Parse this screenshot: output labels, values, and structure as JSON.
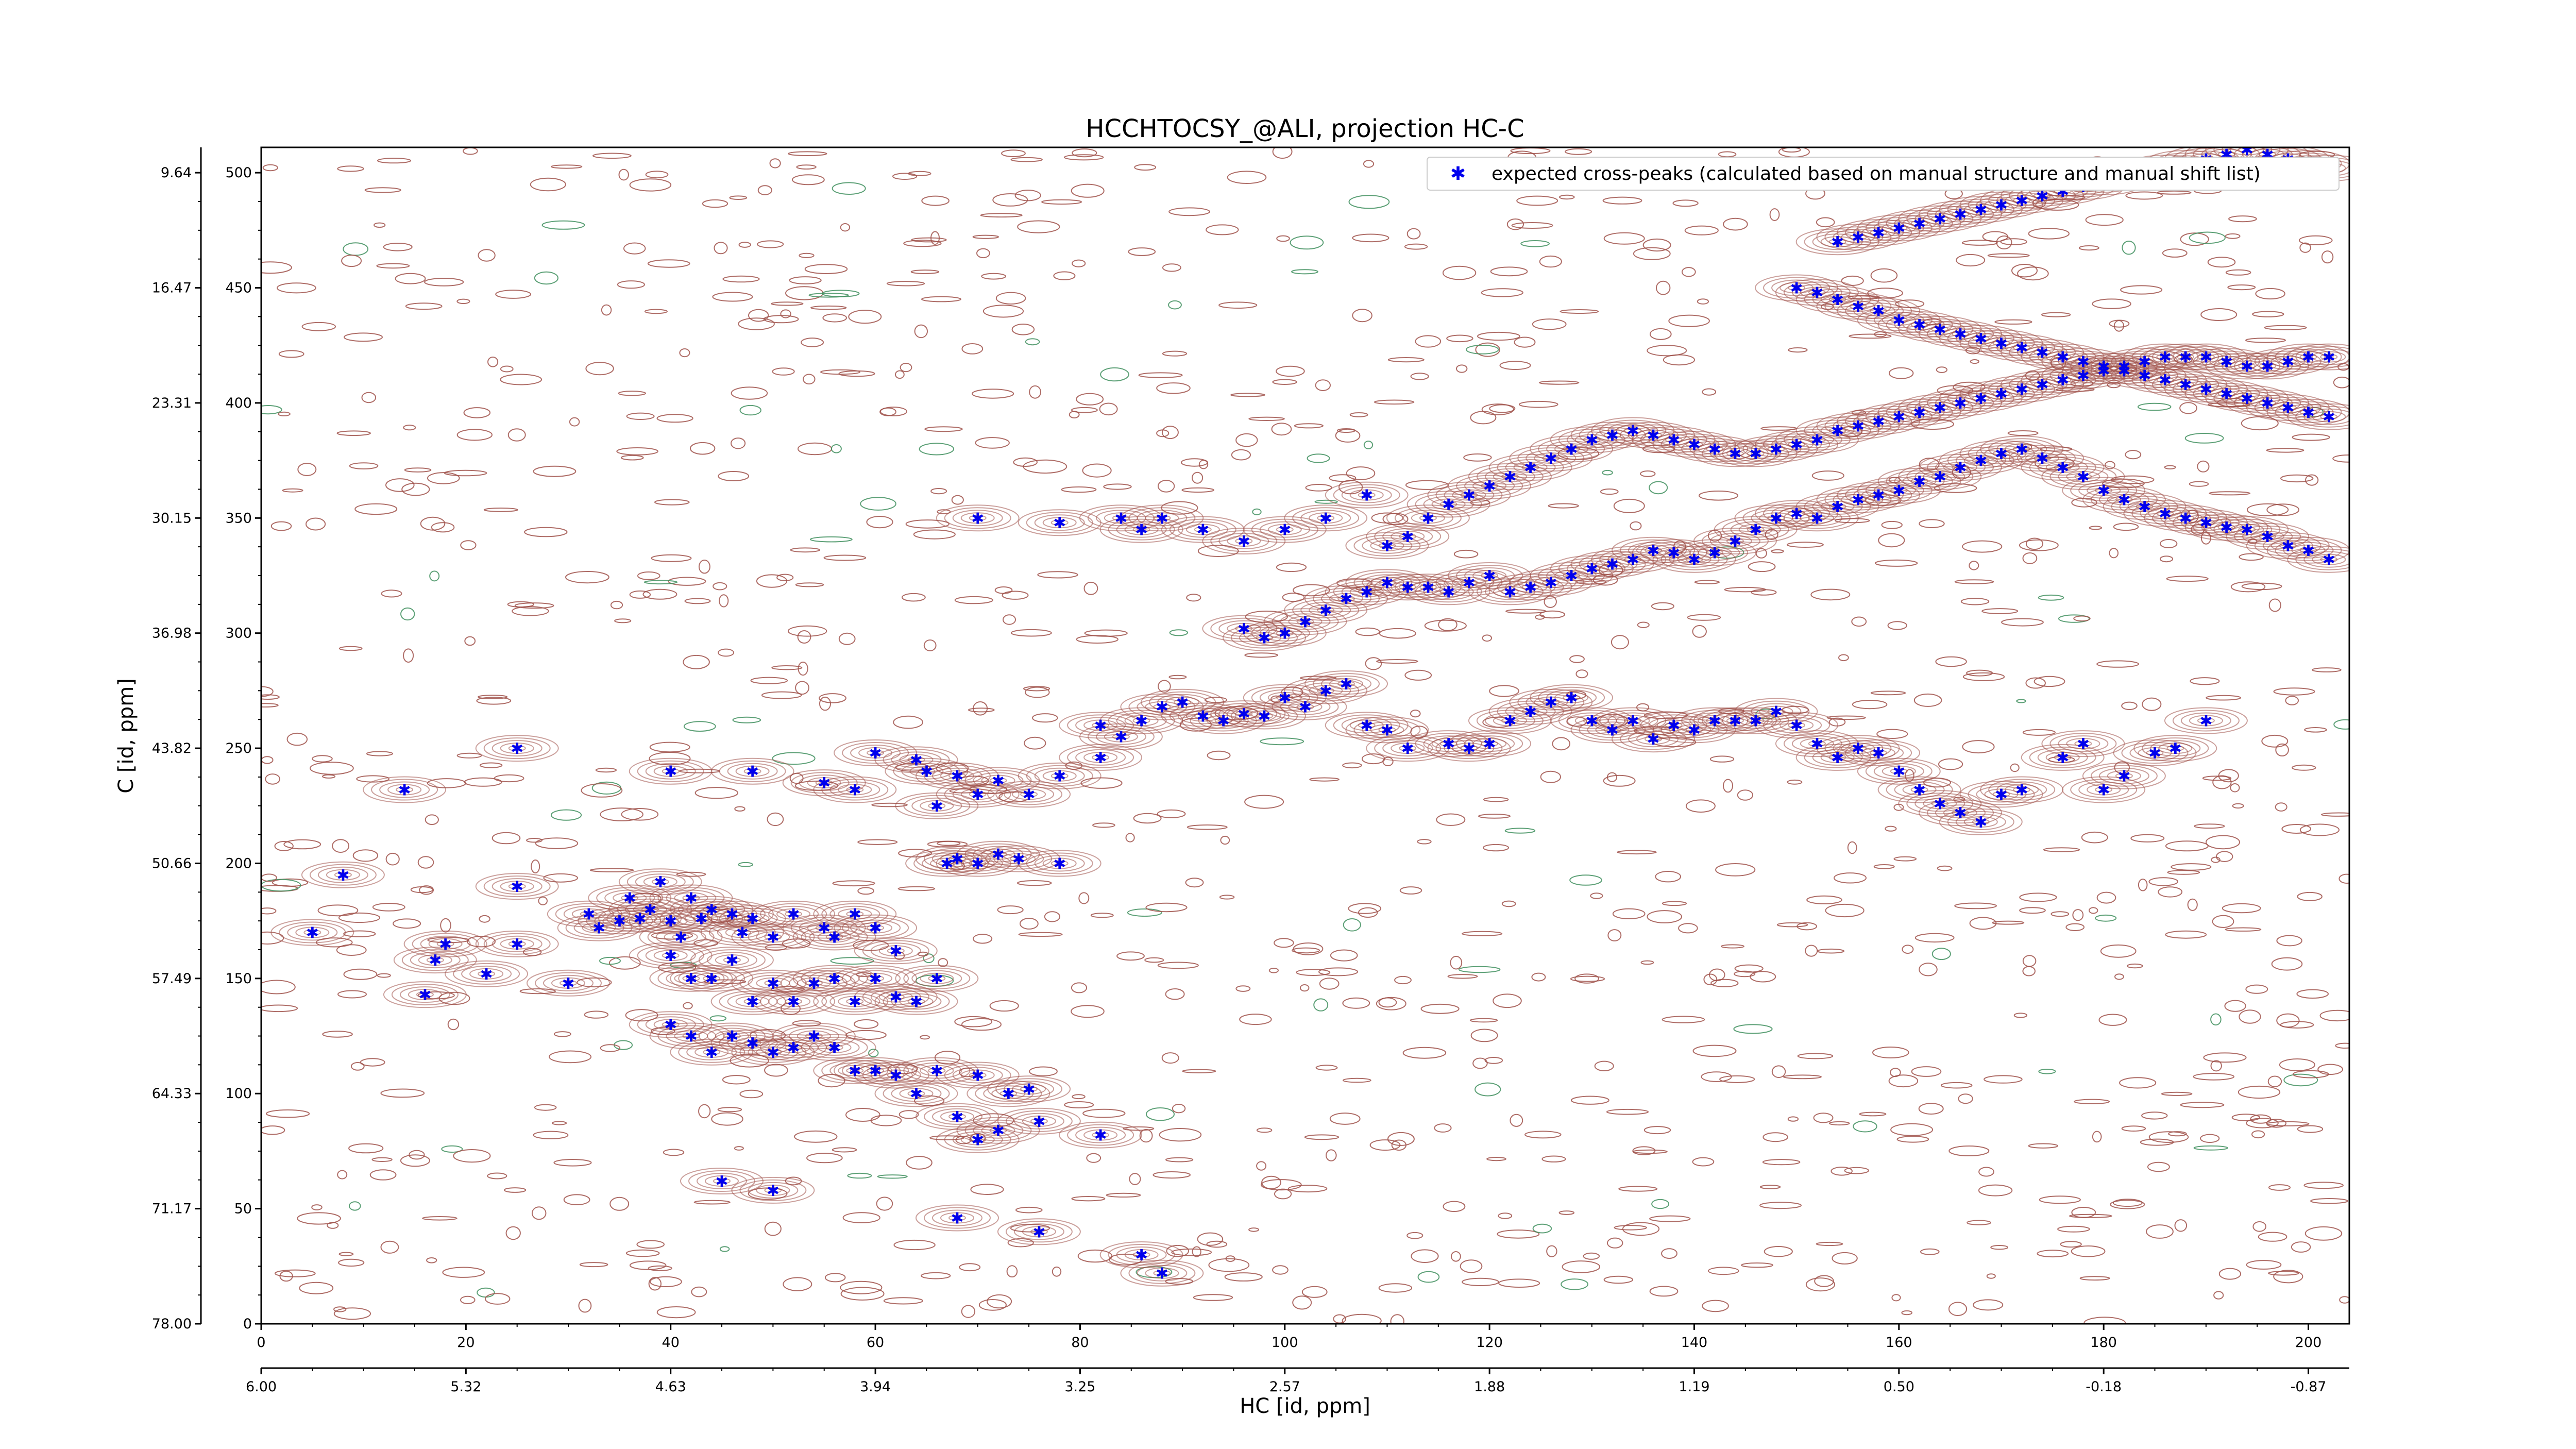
{
  "chart_data": {
    "type": "scatter",
    "title": "HCCHTOCSY_@ALI, projection HC-C",
    "xlabel": "HC [id, ppm]",
    "ylabel": "C [id, ppm]",
    "xlim": [
      0,
      204
    ],
    "ylim": [
      0,
      511
    ],
    "x_ticks": [
      0,
      20,
      40,
      60,
      80,
      100,
      120,
      140,
      160,
      180,
      200
    ],
    "y_ticks": [
      0,
      50,
      100,
      150,
      200,
      250,
      300,
      350,
      400,
      450,
      500
    ],
    "x_ppm_ticks": [
      "6.00",
      "5.32",
      "4.63",
      "3.94",
      "3.25",
      "2.57",
      "1.88",
      "1.19",
      "0.50",
      "-0.18",
      "-0.87"
    ],
    "y_ppm_ticks": [
      "78.00",
      "71.17",
      "64.33",
      "57.49",
      "50.66",
      "43.82",
      "36.98",
      "30.15",
      "23.31",
      "16.47",
      "9.64"
    ],
    "legend_position": "top-right",
    "series": [
      {
        "name": "expected cross-peaks (calculated based on manual structure and manual shift list)",
        "marker": "star",
        "color": "#0000ee",
        "points": [
          [
            5,
            170
          ],
          [
            8,
            195
          ],
          [
            16,
            143
          ],
          [
            17,
            158
          ],
          [
            18,
            165
          ],
          [
            22,
            152
          ],
          [
            25,
            190
          ],
          [
            25,
            165
          ],
          [
            30,
            148
          ],
          [
            32,
            178
          ],
          [
            33,
            172
          ],
          [
            35,
            175
          ],
          [
            36,
            185
          ],
          [
            37,
            176
          ],
          [
            38,
            180
          ],
          [
            39,
            192
          ],
          [
            40,
            175
          ],
          [
            41,
            168
          ],
          [
            42,
            185
          ],
          [
            43,
            176
          ],
          [
            44,
            180
          ],
          [
            46,
            178
          ],
          [
            47,
            170
          ],
          [
            48,
            176
          ],
          [
            50,
            168
          ],
          [
            52,
            178
          ],
          [
            55,
            172
          ],
          [
            56,
            168
          ],
          [
            58,
            178
          ],
          [
            60,
            172
          ],
          [
            62,
            162
          ],
          [
            40,
            160
          ],
          [
            42,
            150
          ],
          [
            44,
            150
          ],
          [
            46,
            158
          ],
          [
            48,
            140
          ],
          [
            50,
            148
          ],
          [
            52,
            140
          ],
          [
            54,
            148
          ],
          [
            56,
            150
          ],
          [
            58,
            140
          ],
          [
            60,
            150
          ],
          [
            62,
            142
          ],
          [
            64,
            140
          ],
          [
            66,
            150
          ],
          [
            40,
            130
          ],
          [
            42,
            125
          ],
          [
            44,
            118
          ],
          [
            46,
            125
          ],
          [
            48,
            122
          ],
          [
            50,
            118
          ],
          [
            52,
            120
          ],
          [
            54,
            125
          ],
          [
            56,
            120
          ],
          [
            58,
            110
          ],
          [
            60,
            110
          ],
          [
            62,
            108
          ],
          [
            64,
            100
          ],
          [
            66,
            110
          ],
          [
            70,
            108
          ],
          [
            73,
            100
          ],
          [
            75,
            102
          ],
          [
            76,
            88
          ],
          [
            68,
            90
          ],
          [
            70,
            80
          ],
          [
            72,
            84
          ],
          [
            82,
            82
          ],
          [
            45,
            62
          ],
          [
            50,
            58
          ],
          [
            68,
            46
          ],
          [
            76,
            40
          ],
          [
            86,
            30
          ],
          [
            88,
            22
          ],
          [
            14,
            232
          ],
          [
            25,
            250
          ],
          [
            40,
            240
          ],
          [
            48,
            240
          ],
          [
            55,
            235
          ],
          [
            58,
            232
          ],
          [
            65,
            240
          ],
          [
            68,
            238
          ],
          [
            70,
            230
          ],
          [
            72,
            236
          ],
          [
            75,
            230
          ],
          [
            78,
            238
          ],
          [
            82,
            246
          ],
          [
            60,
            248
          ],
          [
            64,
            245
          ],
          [
            66,
            225
          ],
          [
            67,
            200
          ],
          [
            68,
            202
          ],
          [
            70,
            200
          ],
          [
            72,
            204
          ],
          [
            74,
            202
          ],
          [
            78,
            200
          ],
          [
            82,
            260
          ],
          [
            84,
            255
          ],
          [
            86,
            262
          ],
          [
            88,
            268
          ],
          [
            90,
            270
          ],
          [
            92,
            264
          ],
          [
            94,
            262
          ],
          [
            96,
            265
          ],
          [
            98,
            264
          ],
          [
            100,
            272
          ],
          [
            102,
            268
          ],
          [
            104,
            275
          ],
          [
            106,
            278
          ],
          [
            108,
            260
          ],
          [
            110,
            258
          ],
          [
            112,
            250
          ],
          [
            116,
            252
          ],
          [
            118,
            250
          ],
          [
            120,
            252
          ],
          [
            122,
            262
          ],
          [
            124,
            266
          ],
          [
            126,
            270
          ],
          [
            128,
            272
          ],
          [
            130,
            262
          ],
          [
            132,
            258
          ],
          [
            134,
            262
          ],
          [
            136,
            254
          ],
          [
            138,
            260
          ],
          [
            140,
            258
          ],
          [
            142,
            262
          ],
          [
            144,
            262
          ],
          [
            146,
            262
          ],
          [
            148,
            266
          ],
          [
            150,
            260
          ],
          [
            152,
            252
          ],
          [
            154,
            246
          ],
          [
            156,
            250
          ],
          [
            158,
            248
          ],
          [
            160,
            240
          ],
          [
            162,
            232
          ],
          [
            164,
            226
          ],
          [
            166,
            222
          ],
          [
            168,
            218
          ],
          [
            170,
            230
          ],
          [
            172,
            232
          ],
          [
            176,
            246
          ],
          [
            178,
            252
          ],
          [
            180,
            232
          ],
          [
            182,
            238
          ],
          [
            185,
            248
          ],
          [
            187,
            250
          ],
          [
            190,
            262
          ],
          [
            96,
            302
          ],
          [
            98,
            298
          ],
          [
            100,
            300
          ],
          [
            102,
            305
          ],
          [
            104,
            310
          ],
          [
            106,
            315
          ],
          [
            108,
            318
          ],
          [
            110,
            322
          ],
          [
            112,
            320
          ],
          [
            114,
            320
          ],
          [
            116,
            318
          ],
          [
            118,
            322
          ],
          [
            120,
            325
          ],
          [
            122,
            318
          ],
          [
            124,
            320
          ],
          [
            126,
            322
          ],
          [
            128,
            325
          ],
          [
            130,
            328
          ],
          [
            132,
            330
          ],
          [
            134,
            332
          ],
          [
            136,
            336
          ],
          [
            138,
            335
          ],
          [
            140,
            332
          ],
          [
            142,
            335
          ],
          [
            144,
            340
          ],
          [
            146,
            345
          ],
          [
            148,
            350
          ],
          [
            150,
            352
          ],
          [
            152,
            350
          ],
          [
            154,
            355
          ],
          [
            156,
            358
          ],
          [
            158,
            360
          ],
          [
            160,
            362
          ],
          [
            162,
            366
          ],
          [
            164,
            368
          ],
          [
            166,
            372
          ],
          [
            168,
            375
          ],
          [
            170,
            378
          ],
          [
            172,
            380
          ],
          [
            174,
            376
          ],
          [
            176,
            372
          ],
          [
            178,
            368
          ],
          [
            180,
            362
          ],
          [
            182,
            358
          ],
          [
            184,
            355
          ],
          [
            186,
            352
          ],
          [
            188,
            350
          ],
          [
            190,
            348
          ],
          [
            192,
            346
          ],
          [
            194,
            345
          ],
          [
            196,
            342
          ],
          [
            198,
            338
          ],
          [
            200,
            336
          ],
          [
            202,
            332
          ],
          [
            110,
            338
          ],
          [
            112,
            342
          ],
          [
            114,
            350
          ],
          [
            116,
            356
          ],
          [
            118,
            360
          ],
          [
            120,
            364
          ],
          [
            122,
            368
          ],
          [
            124,
            372
          ],
          [
            126,
            376
          ],
          [
            128,
            380
          ],
          [
            130,
            384
          ],
          [
            132,
            386
          ],
          [
            134,
            388
          ],
          [
            136,
            386
          ],
          [
            138,
            384
          ],
          [
            140,
            382
          ],
          [
            142,
            380
          ],
          [
            144,
            378
          ],
          [
            146,
            378
          ],
          [
            148,
            380
          ],
          [
            150,
            382
          ],
          [
            152,
            384
          ],
          [
            154,
            388
          ],
          [
            156,
            390
          ],
          [
            158,
            392
          ],
          [
            160,
            394
          ],
          [
            162,
            396
          ],
          [
            164,
            398
          ],
          [
            166,
            400
          ],
          [
            168,
            402
          ],
          [
            170,
            404
          ],
          [
            172,
            406
          ],
          [
            174,
            408
          ],
          [
            176,
            410
          ],
          [
            178,
            412
          ],
          [
            180,
            414
          ],
          [
            182,
            416
          ],
          [
            184,
            418
          ],
          [
            186,
            420
          ],
          [
            188,
            420
          ],
          [
            190,
            420
          ],
          [
            192,
            418
          ],
          [
            194,
            416
          ],
          [
            196,
            416
          ],
          [
            198,
            418
          ],
          [
            200,
            420
          ],
          [
            202,
            420
          ],
          [
            150,
            450
          ],
          [
            152,
            448
          ],
          [
            154,
            445
          ],
          [
            156,
            442
          ],
          [
            158,
            440
          ],
          [
            160,
            436
          ],
          [
            162,
            434
          ],
          [
            164,
            432
          ],
          [
            166,
            430
          ],
          [
            168,
            428
          ],
          [
            170,
            426
          ],
          [
            172,
            424
          ],
          [
            174,
            422
          ],
          [
            176,
            420
          ],
          [
            178,
            418
          ],
          [
            180,
            416
          ],
          [
            182,
            414
          ],
          [
            184,
            412
          ],
          [
            186,
            410
          ],
          [
            188,
            408
          ],
          [
            190,
            406
          ],
          [
            192,
            404
          ],
          [
            194,
            402
          ],
          [
            196,
            400
          ],
          [
            198,
            398
          ],
          [
            200,
            396
          ],
          [
            202,
            394
          ],
          [
            154,
            470
          ],
          [
            156,
            472
          ],
          [
            158,
            474
          ],
          [
            160,
            476
          ],
          [
            162,
            478
          ],
          [
            164,
            480
          ],
          [
            166,
            482
          ],
          [
            168,
            484
          ],
          [
            170,
            486
          ],
          [
            172,
            488
          ],
          [
            174,
            490
          ],
          [
            176,
            492
          ],
          [
            178,
            494
          ],
          [
            180,
            496
          ],
          [
            182,
            498
          ],
          [
            184,
            500
          ],
          [
            186,
            502
          ],
          [
            188,
            504
          ],
          [
            190,
            506
          ],
          [
            192,
            508
          ],
          [
            194,
            510
          ],
          [
            196,
            508
          ],
          [
            198,
            506
          ],
          [
            200,
            504
          ],
          [
            202,
            502
          ],
          [
            70,
            350
          ],
          [
            78,
            348
          ],
          [
            84,
            350
          ],
          [
            86,
            345
          ],
          [
            88,
            350
          ],
          [
            92,
            345
          ],
          [
            96,
            340
          ],
          [
            100,
            345
          ],
          [
            104,
            350
          ],
          [
            108,
            360
          ]
        ]
      }
    ]
  }
}
